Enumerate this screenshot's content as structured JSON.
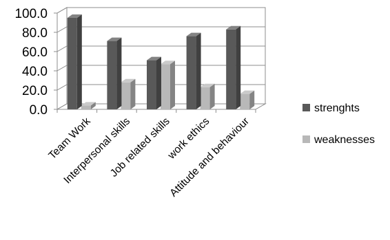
{
  "chart_data": {
    "type": "bar",
    "title": "",
    "xlabel": "",
    "ylabel": "",
    "categories": [
      "Team Work",
      "Interpersonal skills",
      "Job related skills",
      "work ethics",
      "Attitude and behaviour"
    ],
    "series": [
      {
        "name": "strenghts",
        "color": "#595959",
        "values": [
          95,
          71,
          51,
          76,
          83
        ]
      },
      {
        "name": "weaknesses",
        "color": "#b8b8b8",
        "values": [
          4,
          28,
          47,
          23,
          16
        ]
      }
    ],
    "ylim": [
      0,
      100
    ],
    "yticks": [
      "0.0",
      "20.0",
      "40.0",
      "60.0",
      "80.0",
      "100.0"
    ],
    "grid": true,
    "legend_position": "right",
    "style": "3d-clustered-column"
  }
}
